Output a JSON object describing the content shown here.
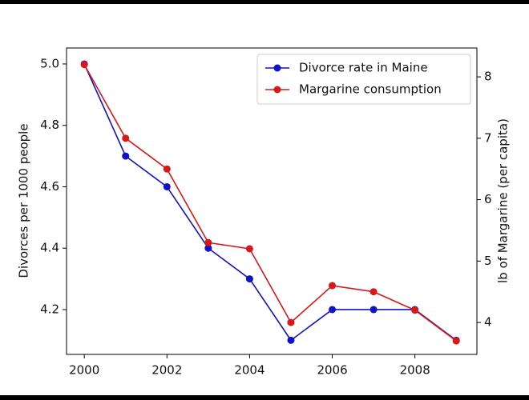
{
  "chart_data": {
    "type": "line",
    "x": [
      2000,
      2001,
      2002,
      2003,
      2004,
      2005,
      2006,
      2007,
      2008,
      2009
    ],
    "series": [
      {
        "name": "Divorce rate in Maine",
        "color": "#1010c8",
        "values": [
          5.0,
          4.7,
          4.6,
          4.4,
          4.3,
          4.1,
          4.2,
          4.2,
          4.2,
          4.1
        ]
      },
      {
        "name": "Margarine consumption",
        "color": "#d81818",
        "axis": "y2",
        "values": [
          8.2,
          7.0,
          6.5,
          5.3,
          5.2,
          4.0,
          4.6,
          4.5,
          4.2,
          3.7
        ]
      }
    ],
    "y_label": "Divorces per 1000 people",
    "y2_label": "lb of Margarine (per capita)",
    "xlim": [
      1999.57,
      2009.5
    ],
    "xticks": [
      2000,
      2002,
      2004,
      2006,
      2008
    ],
    "ylim": [
      4.054,
      5.052
    ],
    "yticks": [
      4.2,
      4.4,
      4.6,
      4.8,
      {
        "value": 5,
        "label": "5.0"
      }
    ],
    "y2lim": [
      3.48,
      8.47
    ],
    "y2ticks": [
      4,
      5,
      6,
      7,
      8
    ],
    "legend": "upper right"
  }
}
